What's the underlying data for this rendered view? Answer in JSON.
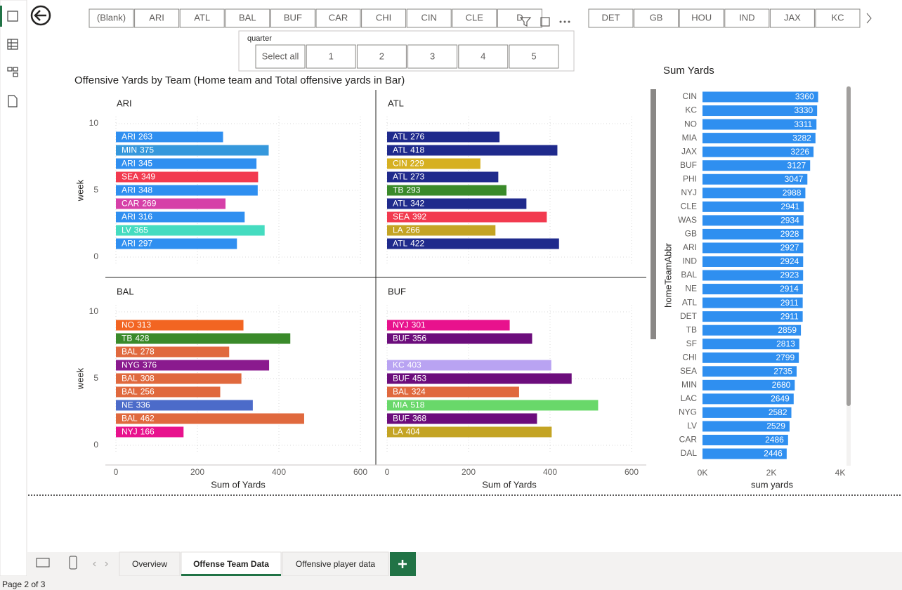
{
  "ui": {
    "team_slicer": [
      "(Blank)",
      "ARI",
      "ATL",
      "BAL",
      "BUF",
      "CAR",
      "CHI",
      "CIN",
      "CLE",
      "D",
      "DET",
      "GB",
      "HOU",
      "IND",
      "JAX",
      "KC"
    ],
    "quarter_slicer": {
      "title": "quarter",
      "options": [
        "Select all",
        "1",
        "2",
        "3",
        "4",
        "5"
      ]
    },
    "tabs": [
      "Overview",
      "Offense Team Data",
      "Offensive player data"
    ],
    "status": "Page 2 of 3"
  },
  "chart_data": [
    {
      "type": "bar",
      "orientation": "horizontal",
      "title": "Offensive Yards by Team (Home team and Total offensive yards in Bar)",
      "y_label": "week",
      "x_label": "Sum of Yards",
      "xlim": [
        0,
        600
      ],
      "xticks": [
        0,
        200,
        400,
        600
      ],
      "ylim": [
        0,
        10
      ],
      "yticks": [
        0,
        5,
        10
      ],
      "grid": true,
      "panels": [
        {
          "title": "ARI",
          "weeks": [
            9,
            8,
            7,
            6,
            5,
            4,
            3,
            2,
            1
          ],
          "teams": [
            "ARI",
            "MIN",
            "ARI",
            "SEA",
            "ARI",
            "CAR",
            "ARI",
            "LV",
            "ARI"
          ],
          "values": [
            263,
            375,
            345,
            349,
            348,
            269,
            316,
            365,
            297
          ],
          "colors": [
            "#2f8ff0",
            "#3598dc",
            "#2f8ff0",
            "#f23a4f",
            "#2f8ff0",
            "#d640a8",
            "#2f8ff0",
            "#45dcc0",
            "#2f8ff0"
          ]
        },
        {
          "title": "ATL",
          "weeks": [
            9,
            8,
            7,
            6,
            5,
            4,
            3,
            2,
            1
          ],
          "teams": [
            "ATL",
            "ATL",
            "CIN",
            "ATL",
            "TB",
            "ATL",
            "SEA",
            "LA",
            "ATL"
          ],
          "values": [
            276,
            418,
            229,
            273,
            293,
            342,
            392,
            266,
            422
          ],
          "colors": [
            "#1f2a8c",
            "#1f2a8c",
            "#d6b021",
            "#1f2a8c",
            "#3a8a2a",
            "#1f2a8c",
            "#f23a4f",
            "#c4a424",
            "#1f2a8c"
          ]
        },
        {
          "title": "BAL",
          "weeks": [
            9,
            8,
            7,
            6,
            5,
            4,
            3,
            2,
            1
          ],
          "teams": [
            "NO",
            "TB",
            "BAL",
            "NYG",
            "BAL",
            "BAL",
            "NE",
            "BAL",
            "NYJ"
          ],
          "values": [
            313,
            428,
            278,
            376,
            308,
            256,
            336,
            462,
            166
          ],
          "colors": [
            "#f26522",
            "#3a8a2a",
            "#e0693e",
            "#8a1a8e",
            "#e0693e",
            "#e0693e",
            "#4c6bc9",
            "#e0693e",
            "#e8128d"
          ]
        },
        {
          "title": "BUF",
          "weeks": [
            9,
            8,
            6,
            5,
            4,
            3,
            2,
            1
          ],
          "teams": [
            "NYJ",
            "BUF",
            "KC",
            "BUF",
            "BAL",
            "MIA",
            "BUF",
            "LA"
          ],
          "values": [
            301,
            356,
            403,
            453,
            324,
            518,
            368,
            404
          ],
          "colors": [
            "#e8128d",
            "#6c0d7c",
            "#b9a3f2",
            "#6c0d7c",
            "#e0693e",
            "#69d86a",
            "#6c0d7c",
            "#c4a424"
          ]
        }
      ]
    },
    {
      "type": "bar",
      "orientation": "horizontal",
      "title": "Sum Yards",
      "y_label": "homeTeamAbbr",
      "x_label": "sum yards",
      "color": "#2f8ff0",
      "xlim": [
        0,
        4000
      ],
      "xticks": [
        {
          "value": 0,
          "label": "0K"
        },
        {
          "value": 2000,
          "label": "2K"
        },
        {
          "value": 4000,
          "label": "4K"
        }
      ],
      "categories": [
        "CIN",
        "KC",
        "NO",
        "MIA",
        "JAX",
        "BUF",
        "PHI",
        "NYJ",
        "CLE",
        "WAS",
        "GB",
        "ARI",
        "IND",
        "BAL",
        "NE",
        "ATL",
        "DET",
        "TB",
        "SF",
        "CHI",
        "SEA",
        "MIN",
        "LAC",
        "NYG",
        "LV",
        "CAR",
        "DAL"
      ],
      "values": [
        3360,
        3330,
        3311,
        3282,
        3226,
        3127,
        3047,
        2988,
        2941,
        2934,
        2928,
        2927,
        2924,
        2923,
        2914,
        2911,
        2911,
        2859,
        2813,
        2799,
        2735,
        2680,
        2649,
        2582,
        2529,
        2486,
        2446
      ]
    }
  ]
}
